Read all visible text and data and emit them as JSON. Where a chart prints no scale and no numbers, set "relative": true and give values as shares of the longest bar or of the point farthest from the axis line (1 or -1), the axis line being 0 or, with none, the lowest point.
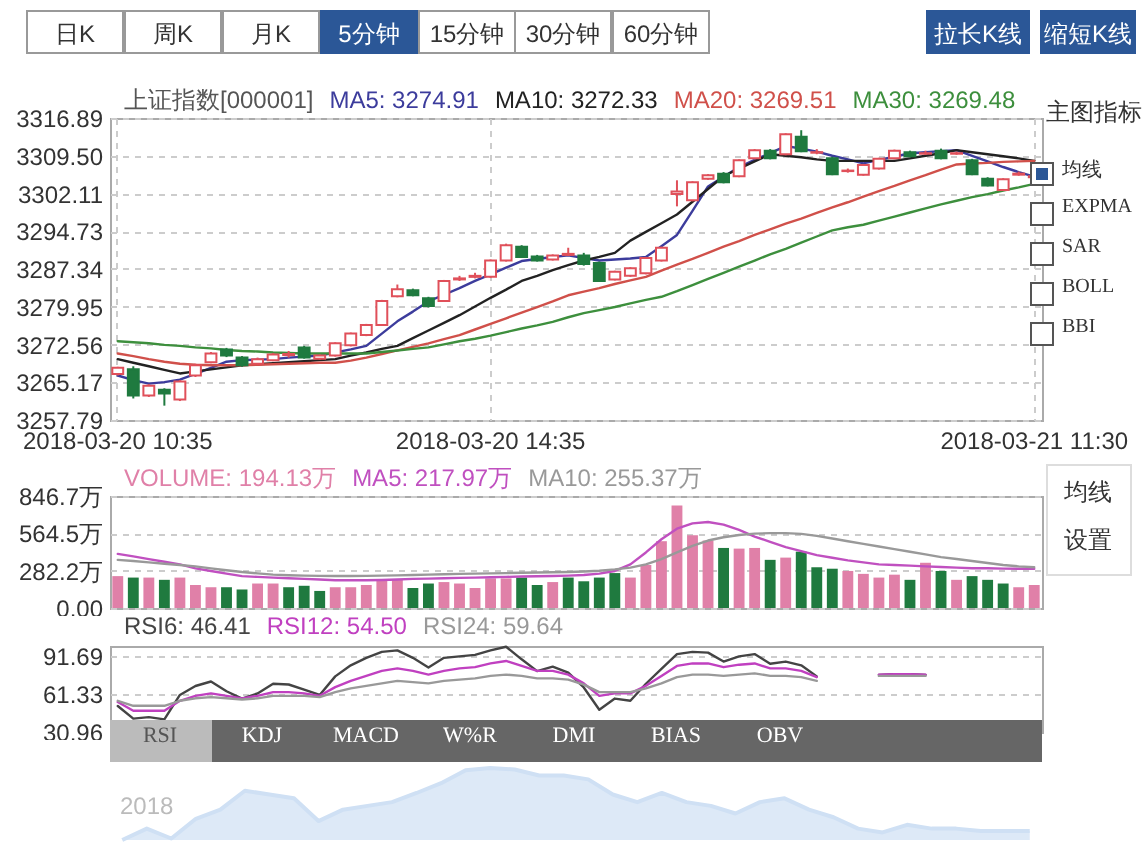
{
  "chart_data": [
    {
      "type": "other",
      "annotations": [
        "日K",
        "周K",
        "月K",
        "5分钟",
        "15分钟",
        "30分钟",
        "60分钟",
        "拉长K线",
        "缩短K线",
        "主图指标",
        "均线",
        "EXPMA",
        "SAR",
        "BOLL",
        "BBI",
        "均线",
        "设置",
        "RSI",
        "KDJ",
        "MACD",
        "W%R",
        "DMI",
        "BIAS",
        "OBV"
      ]
    },
    {
      "type": "candlestick",
      "title": "上证指数[000001]",
      "legend": "top",
      "grid": true,
      "categories": [
        "2018-03-20 10:35",
        null,
        null,
        null,
        null,
        null,
        null,
        null,
        null,
        null,
        null,
        null,
        null,
        null,
        null,
        null,
        null,
        null,
        null,
        null,
        null,
        null,
        null,
        null,
        "2018-03-20 14:35",
        null,
        null,
        null,
        null,
        null,
        null,
        null,
        null,
        null,
        null,
        null,
        null,
        null,
        null,
        null,
        null,
        null,
        null,
        null,
        null,
        null,
        null,
        null,
        null,
        null,
        null,
        null,
        null,
        null,
        null,
        null,
        null,
        null,
        null,
        "2018-03-21 11:30"
      ],
      "ylim": [
        3257.79,
        3316.89
      ],
      "yticks": [
        3257.79,
        3265.17,
        3272.56,
        3279.95,
        3287.34,
        3294.73,
        3302.11,
        {
          "value": 3309.5,
          "label": "3309.50"
        },
        3316.89
      ],
      "ohlc": [
        [
          3266.8,
          3268.2,
          3266.5,
          3268.0
        ],
        [
          3267.7,
          3268.3,
          3262.0,
          3262.6
        ],
        [
          3262.6,
          3264.8,
          3262.3,
          3264.5
        ],
        [
          3263.7,
          3264.0,
          3260.6,
          3263.0
        ],
        [
          3261.8,
          3265.6,
          3261.5,
          3265.3
        ],
        [
          3266.5,
          3268.8,
          3266.2,
          3268.5
        ],
        [
          3269.1,
          3271.1,
          3268.9,
          3270.8
        ],
        [
          3271.6,
          3271.9,
          3270.1,
          3270.4
        ],
        [
          3270.0,
          3270.3,
          3268.2,
          3268.5
        ],
        [
          3268.8,
          3270.0,
          3268.6,
          3269.7
        ],
        [
          3269.5,
          3270.9,
          3269.3,
          3270.6
        ],
        [
          3270.5,
          3271.3,
          3270.0,
          3270.7
        ],
        [
          3272.0,
          3272.3,
          3269.8,
          3270.0
        ],
        [
          3269.8,
          3270.6,
          3269.6,
          3270.4
        ],
        [
          3270.4,
          3273.0,
          3270.2,
          3272.8
        ],
        [
          3272.4,
          3274.9,
          3272.2,
          3274.7
        ],
        [
          3274.4,
          3276.6,
          3274.2,
          3276.4
        ],
        [
          3276.4,
          3281.3,
          3276.2,
          3281.1
        ],
        [
          3282.0,
          3284.3,
          3281.8,
          3283.4
        ],
        [
          3283.2,
          3283.5,
          3282.0,
          3282.2
        ],
        [
          3281.6,
          3281.9,
          3279.8,
          3280.1
        ],
        [
          3281.1,
          3285.2,
          3280.9,
          3285.0
        ],
        [
          3285.3,
          3286.0,
          3285.0,
          3285.5
        ],
        [
          3285.8,
          3286.6,
          3285.5,
          3286.0
        ],
        [
          3285.8,
          3289.2,
          3285.6,
          3289.0
        ],
        [
          3289.0,
          3292.3,
          3288.8,
          3292.0
        ],
        [
          3291.7,
          3292.0,
          3289.5,
          3289.7
        ],
        [
          3289.8,
          3290.1,
          3288.8,
          3289.0
        ],
        [
          3289.2,
          3290.2,
          3289.0,
          3290.0
        ],
        [
          3290.1,
          3291.5,
          3289.9,
          3290.3
        ],
        [
          3290.0,
          3290.5,
          3288.0,
          3288.3
        ],
        [
          3288.5,
          3288.8,
          3284.8,
          3285.0
        ],
        [
          3285.3,
          3287.0,
          3285.1,
          3286.8
        ],
        [
          3286.0,
          3287.7,
          3285.8,
          3287.5
        ],
        [
          3286.5,
          3289.7,
          3286.3,
          3289.5
        ],
        [
          3289.0,
          3291.7,
          3288.8,
          3291.5
        ],
        [
          3302.0,
          3304.7,
          3299.6,
          3302.5
        ],
        [
          3300.8,
          3304.5,
          3300.6,
          3304.3
        ],
        [
          3305.0,
          3305.9,
          3304.8,
          3305.7
        ],
        [
          3306.0,
          3306.3,
          3304.1,
          3304.3
        ],
        [
          3305.5,
          3308.8,
          3305.3,
          3308.6
        ],
        [
          3309.0,
          3310.8,
          3308.8,
          3310.6
        ],
        [
          3310.5,
          3310.8,
          3308.8,
          3309.0
        ],
        [
          3309.8,
          3313.9,
          3309.6,
          3313.7
        ],
        [
          3313.2,
          3314.5,
          3310.2,
          3310.4
        ],
        [
          3310.1,
          3310.8,
          3309.8,
          3310.2
        ],
        [
          3309.0,
          3309.3,
          3305.7,
          3305.9
        ],
        [
          3306.5,
          3307.0,
          3306.2,
          3306.6
        ],
        [
          3305.8,
          3307.9,
          3305.6,
          3307.7
        ],
        [
          3307.0,
          3309.1,
          3306.8,
          3308.9
        ],
        [
          3309.0,
          3310.7,
          3308.8,
          3310.5
        ],
        [
          3310.2,
          3310.5,
          3309.2,
          3309.4
        ],
        [
          3309.9,
          3310.5,
          3309.7,
          3310.0
        ],
        [
          3310.5,
          3310.9,
          3308.8,
          3309.0
        ],
        [
          3309.9,
          3310.3,
          3309.7,
          3310.0
        ],
        [
          3308.6,
          3308.9,
          3305.7,
          3305.9
        ],
        [
          3305.0,
          3305.3,
          3303.5,
          3303.7
        ],
        [
          3302.8,
          3305.1,
          3302.6,
          3304.9
        ],
        [
          3305.8,
          3306.4,
          3305.6,
          3306.0
        ],
        [
          3305.3,
          3305.8,
          3305.1,
          3305.5
        ]
      ],
      "series": [
        {
          "name": "MA5: 3274.91",
          "type": "line",
          "color": "#3c3c9c",
          "values": [
            3266.5,
            3265.6,
            3264.9,
            3265.2,
            3265.7,
            3266.8,
            3268.0,
            3269.2,
            3269.5,
            3269.6,
            3269.7,
            3270.0,
            3270.2,
            3270.4,
            3271.0,
            3271.6,
            3272.3,
            3274.7,
            3277.1,
            3279.0,
            3281.0,
            3282.3,
            3283.6,
            3285.0,
            3286.3,
            3287.6,
            3288.9,
            3289.3,
            3289.7,
            3290.0,
            3289.5,
            3289.0,
            3289.2,
            3289.4,
            3289.7,
            3291.8,
            3294.0,
            3298.7,
            3303.5,
            3305.4,
            3307.3,
            3308.7,
            3310.0,
            3311.4,
            3310.9,
            3310.3,
            3309.5,
            3308.8,
            3308.0,
            3308.7,
            3309.3,
            3310.0,
            3310.2,
            3310.4,
            3310.6,
            3309.5,
            3308.4,
            3307.3,
            3306.3,
            3305.4
          ]
        },
        {
          "name": "MA10: 3272.33",
          "type": "line",
          "color": "#222222",
          "values": [
            3269.7,
            3269.0,
            3268.3,
            3267.6,
            3266.9,
            3267.3,
            3267.7,
            3268.1,
            3268.5,
            3268.7,
            3268.9,
            3269.1,
            3269.3,
            3269.5,
            3269.7,
            3270.4,
            3271.0,
            3271.7,
            3272.3,
            3273.8,
            3275.3,
            3276.8,
            3278.3,
            3280.0,
            3281.7,
            3283.3,
            3285.0,
            3286.0,
            3287.1,
            3288.1,
            3289.0,
            3289.7,
            3290.5,
            3292.9,
            3294.6,
            3296.3,
            3298.0,
            3300.5,
            3303.0,
            3305.5,
            3307.0,
            3308.4,
            3309.8,
            3309.5,
            3309.2,
            3308.8,
            3308.5,
            3308.5,
            3308.5,
            3308.5,
            3308.5,
            3309.0,
            3309.5,
            3310.0,
            3310.6,
            3310.2,
            3309.8,
            3309.4,
            3309.0,
            3308.5
          ]
        },
        {
          "name": "MA20: 3269.51",
          "type": "line",
          "color": "#d0504a",
          "values": [
            3270.8,
            3270.3,
            3269.7,
            3269.2,
            3268.8,
            3268.6,
            3268.5,
            3268.5,
            3268.5,
            3268.6,
            3268.7,
            3268.8,
            3268.9,
            3269.0,
            3269.0,
            3269.4,
            3270.0,
            3270.7,
            3271.4,
            3272.1,
            3272.8,
            3273.6,
            3274.4,
            3275.5,
            3276.6,
            3277.7,
            3278.8,
            3279.9,
            3281.0,
            3282.2,
            3282.9,
            3283.6,
            3284.4,
            3285.1,
            3285.8,
            3287.0,
            3288.2,
            3289.3,
            3290.5,
            3291.7,
            3292.8,
            3294.0,
            3295.1,
            3296.2,
            3297.2,
            3298.3,
            3299.4,
            3300.4,
            3301.5,
            3302.6,
            3303.6,
            3304.7,
            3305.7,
            3306.8,
            3307.8,
            3308.0,
            3308.1,
            3308.3,
            3308.4,
            3308.5
          ]
        },
        {
          "name": "MA30: 3269.48",
          "type": "line",
          "color": "#3d8f3d",
          "values": [
            3273.2,
            3273.0,
            3272.8,
            3272.5,
            3272.3,
            3272.0,
            3271.8,
            3271.5,
            3271.3,
            3271.2,
            3271.0,
            3270.9,
            3270.8,
            3270.8,
            3270.8,
            3270.8,
            3270.8,
            3271.1,
            3271.4,
            3271.7,
            3272.0,
            3272.6,
            3273.2,
            3273.7,
            3274.3,
            3275.0,
            3275.7,
            3276.3,
            3277.0,
            3277.9,
            3278.7,
            3279.3,
            3279.9,
            3280.6,
            3281.3,
            3281.9,
            3283.0,
            3284.2,
            3285.4,
            3286.6,
            3287.8,
            3289.0,
            3290.2,
            3291.3,
            3292.5,
            3293.7,
            3294.9,
            3295.5,
            3296.0,
            3296.8,
            3297.6,
            3298.4,
            3299.2,
            3300.0,
            3300.7,
            3301.4,
            3302.0,
            3302.7,
            3303.3,
            3304.0
          ]
        }
      ]
    },
    {
      "type": "bar",
      "legend": "top",
      "grid": true,
      "tick_labels": "y",
      "categories": [
        null,
        null,
        null,
        null,
        null,
        null,
        null,
        null,
        null,
        null,
        null,
        null,
        null,
        null,
        null,
        null,
        null,
        null,
        null,
        null,
        null,
        null,
        null,
        null,
        null,
        null,
        null,
        null,
        null,
        null,
        null,
        null,
        null,
        null,
        null,
        null,
        null,
        null,
        null,
        null,
        null,
        null,
        null,
        null,
        null,
        null,
        null,
        null,
        null,
        null,
        null,
        null,
        null,
        null,
        null,
        null,
        null,
        null,
        null,
        null
      ],
      "ylim": [
        0,
        846.7
      ],
      "yticks": [
        {
          "value": 0,
          "label": "0.00"
        },
        {
          "value": 282.2,
          "label": "282.2万"
        },
        {
          "value": 564.5,
          "label": "564.5万"
        },
        {
          "value": 846.7,
          "label": "846.7万"
        }
      ],
      "series": [
        {
          "name": "VOLUME: 194.13万",
          "type": "bar",
          "color": "#e080a8",
          "colors": [
            "#e080a8",
            "#1f7a3f",
            "#e080a8",
            "#1f7a3f",
            "#e080a8",
            "#e080a8",
            "#e080a8",
            "#1f7a3f",
            "#1f7a3f",
            "#e080a8",
            "#e080a8",
            "#1f7a3f",
            "#1f7a3f",
            "#1f7a3f",
            "#e080a8",
            "#e080a8",
            "#e080a8",
            "#e080a8",
            "#e080a8",
            "#1f7a3f",
            "#1f7a3f",
            "#e080a8",
            "#e080a8",
            "#e080a8",
            "#e080a8",
            "#e080a8",
            "#1f7a3f",
            "#1f7a3f",
            "#e080a8",
            "#1f7a3f",
            "#1f7a3f",
            "#1f7a3f",
            "#1f7a3f",
            "#e080a8",
            "#e080a8",
            "#e080a8",
            "#e080a8",
            "#e080a8",
            "#e080a8",
            "#1f7a3f",
            "#e080a8",
            "#e080a8",
            "#1f7a3f",
            "#e080a8",
            "#1f7a3f",
            "#1f7a3f",
            "#1f7a3f",
            "#e080a8",
            "#e080a8",
            "#e080a8",
            "#e080a8",
            "#1f7a3f",
            "#e080a8",
            "#1f7a3f",
            "#e080a8",
            "#1f7a3f",
            "#1f7a3f",
            "#1f7a3f",
            "#e080a8",
            "#e080a8"
          ],
          "values": [
            241,
            230,
            230,
            213,
            230,
            174,
            157,
            157,
            140,
            185,
            185,
            157,
            168,
            129,
            157,
            157,
            174,
            213,
            213,
            151,
            185,
            196,
            185,
            151,
            224,
            224,
            230,
            174,
            196,
            230,
            202,
            230,
            264,
            230,
            325,
            505,
            774,
            550,
            510,
            454,
            449,
            454,
            364,
            381,
            426,
            308,
            297,
            280,
            258,
            230,
            252,
            213,
            342,
            280,
            213,
            241,
            213,
            185,
            157,
            174
          ]
        },
        {
          "name": "MA5: 217.97万",
          "type": "line",
          "color": "#c050c0",
          "values": [
            409,
            390,
            370,
            350,
            330,
            300,
            280,
            260,
            241,
            235,
            230,
            225,
            220,
            215,
            210,
            210,
            210,
            212,
            215,
            220,
            222,
            225,
            228,
            230,
            232,
            235,
            238,
            240,
            242,
            245,
            250,
            260,
            280,
            330,
            420,
            520,
            600,
            640,
            650,
            630,
            590,
            540,
            500,
            460,
            430,
            400,
            380,
            360,
            345,
            330,
            325,
            320,
            315,
            310,
            305,
            300,
            300,
            298,
            297,
            297
          ]
        },
        {
          "name": "MA10: 255.37万",
          "type": "line",
          "color": "#999999",
          "values": [
            364,
            355,
            345,
            335,
            325,
            315,
            300,
            285,
            272,
            262,
            252,
            248,
            245,
            243,
            242,
            242,
            243,
            245,
            247,
            250,
            252,
            255,
            258,
            260,
            262,
            264,
            266,
            268,
            270,
            272,
            276,
            282,
            292,
            305,
            330,
            370,
            420,
            470,
            510,
            535,
            552,
            562,
            566,
            566,
            560,
            545,
            525,
            505,
            485,
            465,
            445,
            425,
            405,
            385,
            370,
            355,
            340,
            325,
            315,
            308
          ]
        }
      ]
    },
    {
      "type": "line",
      "legend": "top",
      "grid": true,
      "tick_labels": "y",
      "categories": [
        null,
        null,
        null,
        null,
        null,
        null,
        null,
        null,
        null,
        null,
        null,
        null,
        null,
        null,
        null,
        null,
        null,
        null,
        null,
        null,
        null,
        null,
        null,
        null,
        null,
        null,
        null,
        null,
        null,
        null,
        null,
        null,
        null,
        null,
        null,
        null,
        null,
        null,
        null,
        null,
        null,
        null,
        null,
        null,
        null,
        null,
        null,
        null,
        null,
        null,
        null,
        null,
        null,
        null,
        null,
        null,
        null,
        null,
        null,
        null
      ],
      "ylim": [
        30.96,
        100
      ],
      "yticks": [
        30.96,
        61.33,
        91.69
      ],
      "series": [
        {
          "name": "RSI6: 46.41",
          "color": "#444444",
          "values": [
            51.8,
            41.7,
            42.9,
            41.1,
            60.7,
            67.9,
            71.5,
            63.7,
            57.8,
            61.9,
            69.7,
            69.1,
            64.9,
            60.7,
            75.6,
            84.5,
            90.5,
            95.3,
            96.5,
            90.5,
            82.8,
            90.5,
            91.7,
            92.9,
            96.5,
            99.4,
            89.3,
            79.8,
            83.4,
            78.6,
            66.7,
            48.8,
            57.8,
            56.0,
            69.7,
            81.6,
            93.5,
            95.3,
            94.7,
            87.5,
            91.7,
            93.5,
            85.7,
            87.5,
            84.5,
            75.6,
            null,
            null,
            null,
            76.8,
            77.4,
            77.4,
            76.8,
            null,
            null,
            null,
            null,
            null,
            null,
            null
          ]
        },
        {
          "name": "RSI12: 54.50",
          "color": "#c040c0",
          "values": [
            55,
            48,
            48,
            48,
            56,
            60,
            62,
            60,
            58,
            60,
            63,
            63,
            62,
            60,
            67,
            72,
            76,
            80,
            82,
            80,
            77,
            80,
            82,
            83,
            86,
            88,
            84,
            80,
            80,
            77,
            70,
            60,
            62,
            62,
            68,
            76,
            84,
            86,
            86,
            83,
            85,
            86,
            82,
            82,
            80,
            75,
            null,
            null,
            null,
            77,
            77.4,
            77.4,
            77,
            null,
            null,
            null,
            null,
            null,
            null,
            null
          ]
        },
        {
          "name": "RSI24: 59.64",
          "color": "#999999",
          "values": [
            56,
            52,
            52,
            52,
            56,
            58,
            59,
            58,
            57,
            58,
            60,
            60,
            60,
            59,
            63,
            66,
            68,
            70,
            72,
            71,
            70,
            72,
            73,
            74,
            76,
            77,
            76,
            74,
            74,
            73,
            69,
            63,
            63,
            63,
            66,
            70,
            75,
            77,
            77,
            76,
            77,
            78,
            76,
            76,
            75,
            72,
            null,
            null,
            null,
            76,
            76,
            76,
            76,
            null,
            null,
            null,
            null,
            null,
            null,
            null
          ]
        }
      ]
    },
    {
      "type": "area",
      "relative": true,
      "tick_labels": false,
      "annotations": [
        "2018"
      ],
      "categories": [
        null,
        null,
        null,
        null,
        null,
        null,
        null,
        null,
        null,
        null,
        null,
        null,
        null,
        null,
        null,
        null,
        null,
        null,
        null,
        null,
        null,
        null,
        null,
        null,
        null,
        null,
        null,
        null,
        null,
        null,
        null,
        null,
        null,
        null,
        null,
        null,
        null,
        null
      ],
      "series": [
        {
          "color": "#cfe0f4",
          "values": [
            0,
            0.158,
            0.021,
            0.295,
            0.421,
            0.684,
            0.632,
            0.579,
            0.263,
            0.421,
            0.474,
            0.526,
            0.653,
            0.789,
            0.968,
            1,
            0.979,
            0.895,
            0.895,
            0.842,
            0.632,
            0.526,
            0.653,
            0.526,
            0.474,
            0.368,
            0.526,
            0.579,
            0.421,
            0.316,
            0.158,
            0.105,
            0.211,
            0.158,
            0.158,
            0.126,
            0.126,
            0.126
          ]
        }
      ]
    }
  ]
}
